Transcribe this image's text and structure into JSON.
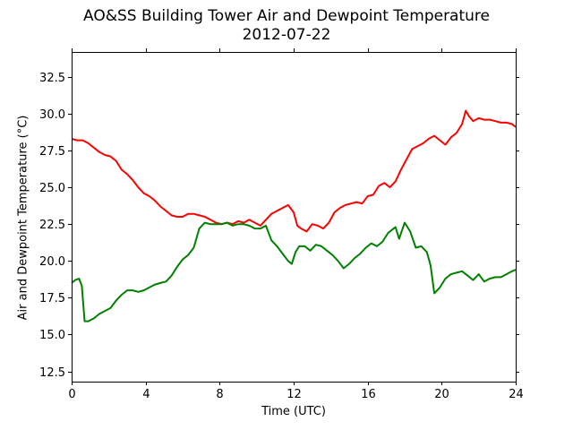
{
  "chart_data": {
    "type": "line",
    "title": "AO&SS Building Tower Air and Dewpoint Temperature",
    "subtitle": "2012-07-22",
    "xlabel": "Time (UTC)",
    "ylabel": "Air and Dewpoint Temperature (°C)",
    "xlim": [
      0,
      24
    ],
    "ylim": [
      11.8,
      34.2
    ],
    "x_ticks": [
      "0",
      "4",
      "8",
      "12",
      "16",
      "20",
      "24"
    ],
    "y_ticks": [
      "12.5",
      "15.0",
      "17.5",
      "20.0",
      "22.5",
      "25.0",
      "27.5",
      "30.0",
      "32.5"
    ],
    "grid": false,
    "series": [
      {
        "color": "#ff0000",
        "x": [
          0,
          0.3,
          0.6,
          0.9,
          1.2,
          1.5,
          1.8,
          2.1,
          2.4,
          2.7,
          3.0,
          3.3,
          3.6,
          3.9,
          4.2,
          4.5,
          4.8,
          5.1,
          5.4,
          5.7,
          6.0,
          6.3,
          6.6,
          6.9,
          7.2,
          7.5,
          7.8,
          8.1,
          8.4,
          8.7,
          9.0,
          9.3,
          9.6,
          9.9,
          10.2,
          10.5,
          10.8,
          11.1,
          11.4,
          11.7,
          12.0,
          12.2,
          12.4,
          12.7,
          13.0,
          13.3,
          13.6,
          13.9,
          14.2,
          14.5,
          14.8,
          15.1,
          15.4,
          15.7,
          16.0,
          16.3,
          16.6,
          16.9,
          17.2,
          17.5,
          17.8,
          18.1,
          18.4,
          18.7,
          19.0,
          19.3,
          19.6,
          19.9,
          20.2,
          20.5,
          20.8,
          21.1,
          21.3,
          21.5,
          21.7,
          22.0,
          22.3,
          22.6,
          22.9,
          23.2,
          23.5,
          23.8,
          24.0
        ],
        "y": [
          28.3,
          28.2,
          28.2,
          28.0,
          27.7,
          27.4,
          27.2,
          27.1,
          26.8,
          26.2,
          25.9,
          25.5,
          25.0,
          24.6,
          24.4,
          24.1,
          23.7,
          23.4,
          23.1,
          23.0,
          23.0,
          23.2,
          23.2,
          23.1,
          23.0,
          22.8,
          22.6,
          22.5,
          22.6,
          22.5,
          22.7,
          22.6,
          22.8,
          22.6,
          22.4,
          22.8,
          23.2,
          23.4,
          23.6,
          23.8,
          23.3,
          22.4,
          22.2,
          22.0,
          22.5,
          22.4,
          22.2,
          22.6,
          23.3,
          23.6,
          23.8,
          23.9,
          24.0,
          23.9,
          24.4,
          24.5,
          25.1,
          25.3,
          25.0,
          25.4,
          26.2,
          26.9,
          27.6,
          27.8,
          28.0,
          28.3,
          28.5,
          28.2,
          27.9,
          28.4,
          28.7,
          29.3,
          30.2,
          29.8,
          29.5,
          29.7,
          29.6,
          29.6,
          29.5,
          29.4,
          29.4,
          29.3,
          29.1
        ]
      },
      {
        "color": "#008000",
        "x": [
          0,
          0.2,
          0.4,
          0.55,
          0.7,
          0.9,
          1.2,
          1.5,
          1.8,
          2.1,
          2.4,
          2.7,
          3.0,
          3.3,
          3.6,
          3.9,
          4.2,
          4.5,
          4.8,
          5.1,
          5.4,
          5.7,
          6.0,
          6.3,
          6.6,
          6.9,
          7.2,
          7.5,
          7.8,
          8.1,
          8.4,
          8.7,
          9.0,
          9.3,
          9.6,
          9.9,
          10.2,
          10.5,
          10.8,
          11.1,
          11.4,
          11.7,
          11.9,
          12.1,
          12.3,
          12.6,
          12.9,
          13.2,
          13.5,
          13.8,
          14.1,
          14.4,
          14.7,
          15.0,
          15.3,
          15.6,
          15.9,
          16.2,
          16.5,
          16.8,
          17.1,
          17.3,
          17.5,
          17.7,
          18.0,
          18.3,
          18.6,
          18.9,
          19.2,
          19.4,
          19.6,
          19.9,
          20.2,
          20.5,
          20.8,
          21.1,
          21.4,
          21.7,
          22.0,
          22.3,
          22.6,
          22.9,
          23.2,
          23.5,
          23.8,
          24.0
        ],
        "y": [
          18.5,
          18.7,
          18.8,
          18.3,
          15.9,
          15.9,
          16.1,
          16.4,
          16.6,
          16.8,
          17.3,
          17.7,
          18.0,
          18.0,
          17.9,
          18.0,
          18.2,
          18.4,
          18.5,
          18.6,
          19.0,
          19.6,
          20.1,
          20.4,
          20.9,
          22.2,
          22.6,
          22.5,
          22.5,
          22.5,
          22.6,
          22.4,
          22.5,
          22.5,
          22.4,
          22.2,
          22.2,
          22.4,
          21.4,
          21.0,
          20.5,
          20.0,
          19.8,
          20.6,
          21.0,
          21.0,
          20.7,
          21.1,
          21.0,
          20.7,
          20.4,
          20.0,
          19.5,
          19.8,
          20.2,
          20.5,
          20.9,
          21.2,
          21.0,
          21.3,
          21.9,
          22.1,
          22.3,
          21.5,
          22.6,
          22.0,
          20.9,
          21.0,
          20.6,
          19.7,
          17.8,
          18.2,
          18.8,
          19.1,
          19.2,
          19.3,
          19.0,
          18.7,
          19.1,
          18.6,
          18.8,
          18.9,
          18.9,
          19.1,
          19.3,
          19.4
        ]
      }
    ]
  }
}
